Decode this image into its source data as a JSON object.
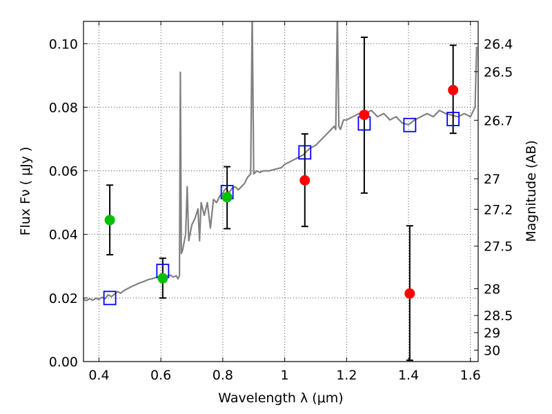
{
  "chart_data": {
    "type": "scatter",
    "xlabel": "Wavelength  λ (μm)",
    "ylabel": "Flux  Fν  ( μJy )",
    "y2label": "Magnitude (AB)",
    "xlim": [
      0.35,
      1.625
    ],
    "ylim": [
      0.0,
      0.107
    ],
    "x_ticks": [
      0.4,
      0.6,
      0.8,
      1.0,
      1.2,
      1.4,
      1.6
    ],
    "x_tick_labels": [
      "0.4",
      "0.6",
      "0.8",
      "1",
      "1.2",
      "1.4",
      "1.6"
    ],
    "y_ticks": [
      0.0,
      0.02,
      0.04,
      0.06,
      0.08,
      0.1
    ],
    "y_tick_labels": [
      "0.00",
      "0.02",
      "0.04",
      "0.06",
      "0.08",
      "0.10"
    ],
    "mag_ticks": [
      {
        "label": "26.4",
        "flux": 0.1
      },
      {
        "label": "26.5",
        "flux": 0.0912
      },
      {
        "label": "26.7",
        "flux": 0.0759
      },
      {
        "label": "27",
        "flux": 0.0575
      },
      {
        "label": "27.2",
        "flux": 0.0479
      },
      {
        "label": "27.5",
        "flux": 0.0363
      },
      {
        "label": "28",
        "flux": 0.0229
      },
      {
        "label": "28.5",
        "flux": 0.0145
      },
      {
        "label": "29",
        "flux": 0.0091
      },
      {
        "label": "30",
        "flux": 0.0036
      }
    ],
    "grid": true,
    "colors": {
      "spectrum": "#808080",
      "detection": "#00c000",
      "upper_band": "#ff0000",
      "model": "#0000ff",
      "errorbar": "#000000"
    },
    "series": [
      {
        "kind": "spectrum",
        "points": [
          [
            0.35,
            0.0195
          ],
          [
            0.36,
            0.0192
          ],
          [
            0.37,
            0.0198
          ],
          [
            0.38,
            0.0193
          ],
          [
            0.39,
            0.0199
          ],
          [
            0.4,
            0.0196
          ],
          [
            0.41,
            0.0202
          ],
          [
            0.42,
            0.0198
          ],
          [
            0.43,
            0.021
          ],
          [
            0.44,
            0.0204
          ],
          [
            0.45,
            0.0212
          ],
          [
            0.46,
            0.022
          ],
          [
            0.47,
            0.0215
          ],
          [
            0.48,
            0.0223
          ],
          [
            0.49,
            0.0228
          ],
          [
            0.5,
            0.0233
          ],
          [
            0.51,
            0.0238
          ],
          [
            0.52,
            0.0242
          ],
          [
            0.53,
            0.0247
          ],
          [
            0.54,
            0.025
          ],
          [
            0.55,
            0.0254
          ],
          [
            0.56,
            0.0258
          ],
          [
            0.57,
            0.026
          ],
          [
            0.58,
            0.0263
          ],
          [
            0.59,
            0.0266
          ],
          [
            0.6,
            0.027
          ],
          [
            0.61,
            0.0272
          ],
          [
            0.62,
            0.0269
          ],
          [
            0.63,
            0.0272
          ],
          [
            0.64,
            0.0266
          ],
          [
            0.65,
            0.027
          ],
          [
            0.655,
            0.026
          ],
          [
            0.66,
            0.027
          ],
          [
            0.663,
            0.091
          ],
          [
            0.666,
            0.034
          ],
          [
            0.67,
            0.035
          ],
          [
            0.68,
            0.04
          ],
          [
            0.685,
            0.055
          ],
          [
            0.69,
            0.038
          ],
          [
            0.7,
            0.043
          ],
          [
            0.71,
            0.045
          ],
          [
            0.72,
            0.048
          ],
          [
            0.725,
            0.038
          ],
          [
            0.73,
            0.05
          ],
          [
            0.74,
            0.046
          ],
          [
            0.75,
            0.05
          ],
          [
            0.76,
            0.042
          ],
          [
            0.77,
            0.051
          ],
          [
            0.78,
            0.05
          ],
          [
            0.79,
            0.052
          ],
          [
            0.8,
            0.053
          ],
          [
            0.81,
            0.0545
          ],
          [
            0.82,
            0.053
          ],
          [
            0.83,
            0.0545
          ],
          [
            0.84,
            0.055
          ],
          [
            0.85,
            0.054
          ],
          [
            0.86,
            0.055
          ],
          [
            0.87,
            0.056
          ],
          [
            0.88,
            0.058
          ],
          [
            0.89,
            0.059
          ],
          [
            0.895,
            0.11
          ],
          [
            0.9,
            0.059
          ],
          [
            0.91,
            0.06
          ],
          [
            0.92,
            0.0595
          ],
          [
            0.93,
            0.06
          ],
          [
            0.95,
            0.06
          ],
          [
            0.97,
            0.0605
          ],
          [
            0.99,
            0.061
          ],
          [
            1.0,
            0.062
          ],
          [
            1.02,
            0.063
          ],
          [
            1.04,
            0.064
          ],
          [
            1.06,
            0.065
          ],
          [
            1.08,
            0.067
          ],
          [
            1.1,
            0.068
          ],
          [
            1.12,
            0.07
          ],
          [
            1.14,
            0.072
          ],
          [
            1.16,
            0.074
          ],
          [
            1.165,
            0.073
          ],
          [
            1.17,
            0.11
          ],
          [
            1.175,
            0.074
          ],
          [
            1.18,
            0.073
          ],
          [
            1.19,
            0.076
          ],
          [
            1.2,
            0.076
          ],
          [
            1.22,
            0.077
          ],
          [
            1.24,
            0.078
          ],
          [
            1.26,
            0.078
          ],
          [
            1.28,
            0.079
          ],
          [
            1.3,
            0.077
          ],
          [
            1.32,
            0.078
          ],
          [
            1.34,
            0.076
          ],
          [
            1.36,
            0.077
          ],
          [
            1.38,
            0.075
          ],
          [
            1.4,
            0.0745
          ],
          [
            1.42,
            0.076
          ],
          [
            1.44,
            0.077
          ],
          [
            1.46,
            0.078
          ],
          [
            1.48,
            0.077
          ],
          [
            1.5,
            0.079
          ],
          [
            1.52,
            0.078
          ],
          [
            1.54,
            0.0775
          ],
          [
            1.56,
            0.077
          ],
          [
            1.58,
            0.078
          ],
          [
            1.6,
            0.077
          ],
          [
            1.615,
            0.08
          ],
          [
            1.62,
            0.099
          ]
        ]
      },
      {
        "kind": "photometry-green",
        "points": [
          {
            "x": 0.435,
            "y": 0.0445,
            "err_low": 0.0336,
            "err_high": 0.0555
          },
          {
            "x": 0.606,
            "y": 0.0262,
            "err_low": 0.02,
            "err_high": 0.0325
          },
          {
            "x": 0.814,
            "y": 0.0517,
            "err_low": 0.0418,
            "err_high": 0.0613
          }
        ]
      },
      {
        "kind": "photometry-red",
        "points": [
          {
            "x": 1.065,
            "y": 0.057,
            "err_low": 0.0425,
            "err_high": 0.0716
          },
          {
            "x": 1.257,
            "y": 0.0776,
            "err_low": 0.053,
            "err_high": 0.102
          },
          {
            "x": 1.404,
            "y": 0.0214,
            "err_low": 0.0004,
            "err_high": 0.0427
          },
          {
            "x": 1.544,
            "y": 0.0854,
            "err_low": 0.0718,
            "err_high": 0.0995
          }
        ]
      },
      {
        "kind": "model-band-flux",
        "points": [
          {
            "x": 0.435,
            "y": 0.02
          },
          {
            "x": 0.606,
            "y": 0.0285
          },
          {
            "x": 0.814,
            "y": 0.0533
          },
          {
            "x": 1.065,
            "y": 0.0658
          },
          {
            "x": 1.257,
            "y": 0.0749
          },
          {
            "x": 1.404,
            "y": 0.0744
          },
          {
            "x": 1.544,
            "y": 0.0763
          }
        ]
      }
    ]
  }
}
